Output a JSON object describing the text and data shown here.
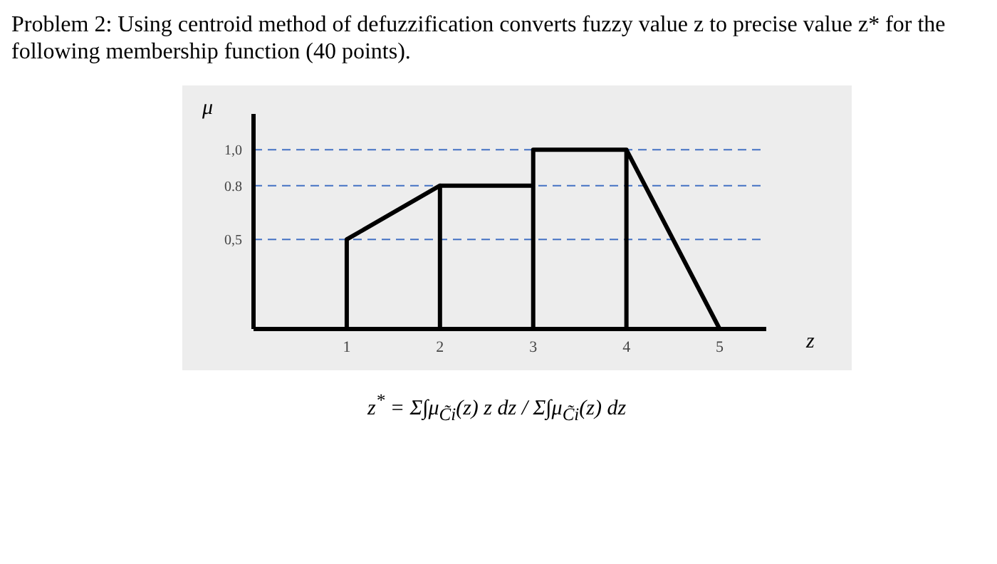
{
  "chart_data": {
    "type": "line",
    "title": "Problem 2: Using centroid method of defuzzification converts fuzzy value z to precise value z* for the following membership function (40 points).",
    "xlabel": "z",
    "ylabel": "μ",
    "x": [
      1,
      1,
      2,
      2,
      2,
      3,
      3,
      3,
      4,
      4,
      4,
      5
    ],
    "series": [
      {
        "color": "#000000",
        "values": [
          0,
          0.5,
          0.8,
          0,
          0.8,
          0.8,
          0,
          1,
          1,
          0,
          1,
          0
        ]
      }
    ],
    "xlim": [
      0,
      5.5
    ],
    "xticks": [
      1,
      2,
      3,
      4,
      5
    ],
    "ylim": [
      0,
      1.2
    ],
    "yticks": [
      {
        "value": 0.5,
        "label": "0,5"
      },
      {
        "value": 0.8,
        "label": "0.8"
      },
      {
        "value": 1,
        "label": "1,0"
      }
    ],
    "ref_lines": [
      {
        "axis": "y",
        "value": 0.5,
        "color": "#4472c4",
        "line_style": "dashed"
      },
      {
        "axis": "y",
        "value": 0.8,
        "color": "#4472c4",
        "line_style": "dashed"
      },
      {
        "axis": "y",
        "value": 1,
        "color": "#4472c4",
        "line_style": "dashed"
      }
    ],
    "grid": false,
    "legend": false,
    "marker": "none",
    "line_style": "solid",
    "annotations": [
      "z$^{*}$ = Σ∫μ$_{C̃i}$(z) z dz / Σ∫μ$_{C̃i}$(z) dz"
    ]
  }
}
